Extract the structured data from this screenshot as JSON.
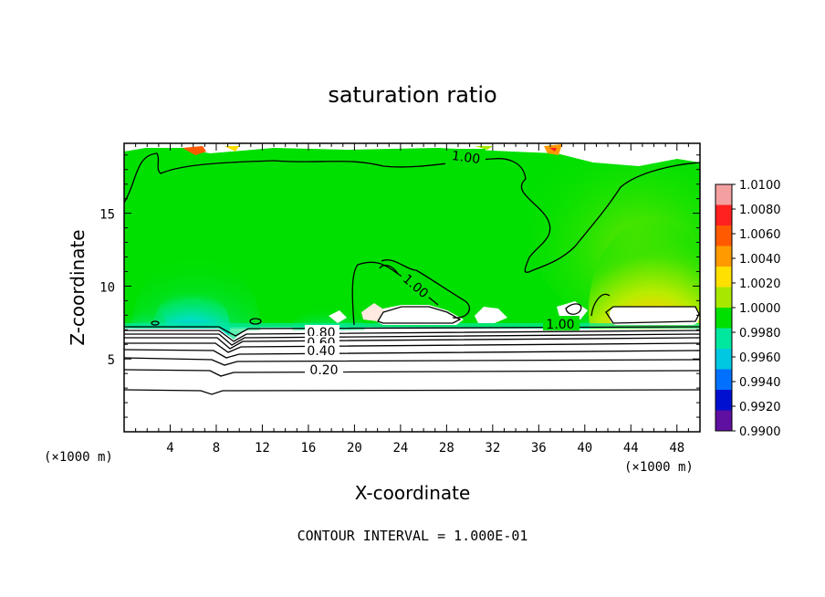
{
  "chart_data": {
    "type": "heatmap",
    "title": "saturation ratio",
    "xlabel": "X-coordinate",
    "ylabel": "Z-coordinate",
    "x_unit": "(×1000 m)",
    "y_unit": "(×1000 m)",
    "xlim": [
      0,
      50
    ],
    "ylim": [
      0,
      19.8
    ],
    "x_ticks": [
      "4",
      "8",
      "12",
      "16",
      "20",
      "24",
      "28",
      "32",
      "36",
      "40",
      "44",
      "48"
    ],
    "y_ticks": [
      "5",
      "10",
      "15"
    ],
    "colorbar": {
      "min": 0.99,
      "max": 1.01,
      "ticks": [
        "1.0100",
        "1.0080",
        "1.0060",
        "1.0040",
        "1.0020",
        "1.0000",
        "0.9980",
        "0.9960",
        "0.9940",
        "0.9920",
        "0.9900"
      ],
      "colors": [
        "#f4a0a0",
        "#ff2020",
        "#ff5a00",
        "#ff9a00",
        "#ffe000",
        "#a8e800",
        "#00e000",
        "#00e8a0",
        "#00c8e0",
        "#0070ff",
        "#0010d0",
        "#6010a0"
      ]
    },
    "contour_labels": [
      "1.00",
      "1.00",
      "1.00",
      "0.80",
      "0.60",
      "0.40",
      "0.20"
    ],
    "footnote": "CONTOUR INTERVAL = 1.000E-01"
  }
}
